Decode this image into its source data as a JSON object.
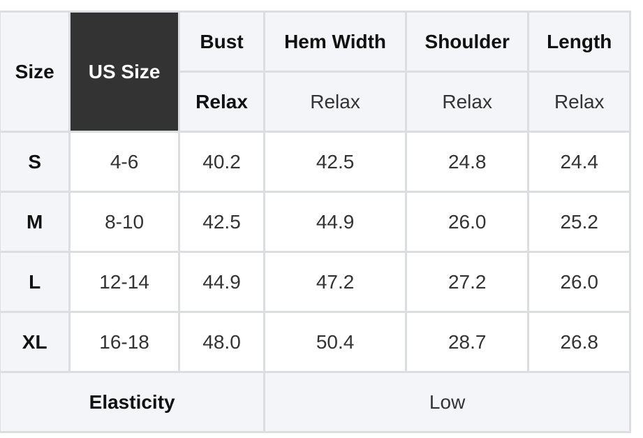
{
  "header": {
    "size": "Size",
    "us_size": "US Size",
    "columns": [
      {
        "name": "Bust",
        "fit": "Relax"
      },
      {
        "name": "Hem Width",
        "fit": "Relax"
      },
      {
        "name": "Shoulder",
        "fit": "Relax"
      },
      {
        "name": "Length",
        "fit": "Relax"
      }
    ]
  },
  "rows": [
    {
      "size": "S",
      "us": "4-6",
      "values": [
        "40.2",
        "42.5",
        "24.8",
        "24.4"
      ]
    },
    {
      "size": "M",
      "us": "8-10",
      "values": [
        "42.5",
        "44.9",
        "26.0",
        "25.2"
      ]
    },
    {
      "size": "L",
      "us": "12-14",
      "values": [
        "44.9",
        "47.2",
        "27.2",
        "26.0"
      ]
    },
    {
      "size": "XL",
      "us": "16-18",
      "values": [
        "48.0",
        "50.4",
        "28.7",
        "26.8"
      ]
    }
  ],
  "footer": {
    "label": "Elasticity",
    "value": "Low"
  },
  "colors": {
    "header_bg": "#f4f5f8",
    "dark_header_bg": "#333333",
    "border": "#dcdde0"
  }
}
